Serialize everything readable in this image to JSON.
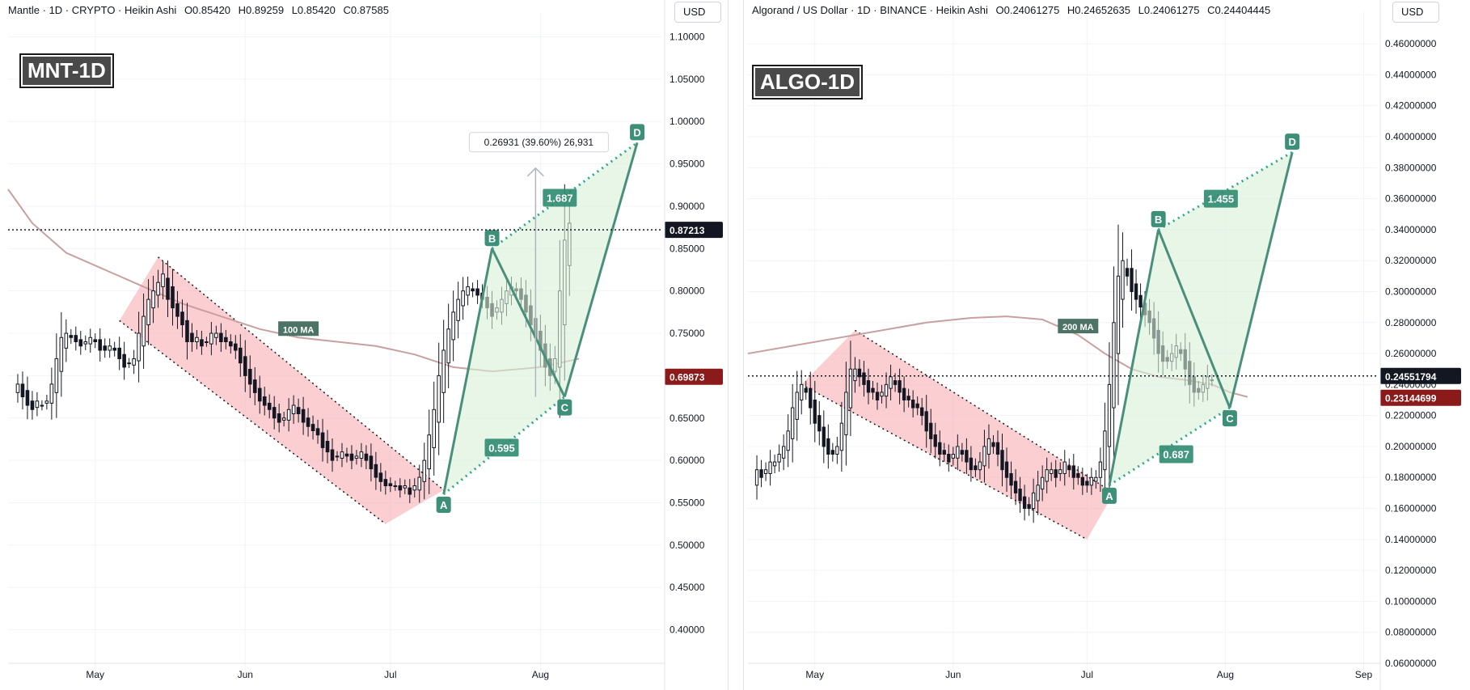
{
  "charts": [
    {
      "legend": [
        "Mantle · 1D · CRYPTO · Heikin Ashi",
        "O0.85420",
        "H0.89259",
        "L0.85420",
        "C0.87585"
      ],
      "currency_button": "USD",
      "ticker_badge": "MNT-1D"
    },
    {
      "legend": [
        "Algorand / US Dollar · 1D · BINANCE · Heikin Ashi",
        "O0.24061275",
        "H0.24652635",
        "L0.24061275",
        "C0.24404445"
      ],
      "currency_button": "USD",
      "ticker_badge": "ALGO-1D"
    }
  ],
  "colors": {
    "up": "#131722",
    "down": "#131722",
    "channel_fill": "#f7a6ad",
    "pattern_fill": "#d8f0d8",
    "pattern_line": "#4a8f7a",
    "pattern_dotted": "#2aa68a",
    "ma_line": "#c9a0a0",
    "last_price_tag": "#131722",
    "ma_tag": "#8b1a1a"
  },
  "chart_data": [
    {
      "type": "candlestick",
      "title": "Mantle · 1D · CRYPTO · Heikin Ashi",
      "ohlc_last": {
        "open": 0.8542,
        "high": 0.89259,
        "low": 0.8542,
        "close": 0.87585
      },
      "ylim": [
        0.37,
        1.11
      ],
      "yticks": [
        "1.10000",
        "1.05000",
        "1.00000",
        "0.95000",
        "0.90000",
        "0.85000",
        "0.80000",
        "0.75000",
        "0.70000",
        "0.65000",
        "0.60000",
        "0.55000",
        "0.50000",
        "0.45000",
        "0.40000"
      ],
      "xticks": [
        {
          "label": "May",
          "day": 18
        },
        {
          "label": "Jun",
          "day": 49
        },
        {
          "label": "Jul",
          "day": 79
        },
        {
          "label": "Aug",
          "day": 110
        }
      ],
      "xlim": [
        0,
        135
      ],
      "close_series": [
        0.69,
        0.675,
        0.665,
        0.66,
        0.67,
        0.665,
        0.67,
        0.69,
        0.72,
        0.745,
        0.75,
        0.745,
        0.74,
        0.735,
        0.74,
        0.745,
        0.74,
        0.73,
        0.73,
        0.735,
        0.73,
        0.72,
        0.71,
        0.715,
        0.72,
        0.75,
        0.77,
        0.79,
        0.8,
        0.81,
        0.82,
        0.79,
        0.78,
        0.77,
        0.76,
        0.74,
        0.74,
        0.745,
        0.735,
        0.74,
        0.75,
        0.75,
        0.74,
        0.74,
        0.735,
        0.73,
        0.715,
        0.7,
        0.69,
        0.68,
        0.67,
        0.665,
        0.66,
        0.65,
        0.645,
        0.65,
        0.66,
        0.665,
        0.655,
        0.645,
        0.64,
        0.635,
        0.63,
        0.615,
        0.61,
        0.6,
        0.605,
        0.61,
        0.605,
        0.6,
        0.605,
        0.61,
        0.6,
        0.59,
        0.58,
        0.575,
        0.57,
        0.57,
        0.57,
        0.565,
        0.57,
        0.56,
        0.57,
        0.58,
        0.6,
        0.63,
        0.66,
        0.7,
        0.73,
        0.755,
        0.775,
        0.79,
        0.8,
        0.805,
        0.8,
        0.795,
        0.79,
        0.78,
        0.77,
        0.78,
        0.79,
        0.8,
        0.805,
        0.8,
        0.79,
        0.775,
        0.76,
        0.745,
        0.73,
        0.71,
        0.7,
        0.72,
        0.8,
        0.86,
        0.88
      ],
      "reference_lines": [
        {
          "label": "0.87213",
          "value": 0.87213,
          "style": "dotted"
        },
        {
          "label": "0.69873",
          "value": 0.69873
        }
      ],
      "moving_average": {
        "name": "100 MA",
        "points": [
          [
            0,
            0.92
          ],
          [
            5,
            0.88
          ],
          [
            12,
            0.845
          ],
          [
            20,
            0.825
          ],
          [
            28,
            0.805
          ],
          [
            36,
            0.785
          ],
          [
            44,
            0.77
          ],
          [
            52,
            0.755
          ],
          [
            60,
            0.745
          ],
          [
            68,
            0.74
          ],
          [
            76,
            0.735
          ],
          [
            84,
            0.725
          ],
          [
            92,
            0.71
          ],
          [
            100,
            0.705
          ],
          [
            110,
            0.71
          ],
          [
            118,
            0.72
          ]
        ]
      },
      "channel": {
        "upper": [
          [
            23,
            0.765
          ],
          [
            88,
            0.57
          ]
        ],
        "lower": [
          [
            23,
            0.765
          ],
          [
            31,
            0.84
          ],
          [
            90,
            0.56
          ],
          [
            78,
            0.525
          ]
        ],
        "upper_dotted": [
          [
            31,
            0.84
          ],
          [
            90,
            0.565
          ]
        ],
        "lower_dotted": [
          [
            23,
            0.765
          ],
          [
            78,
            0.525
          ]
        ]
      },
      "harmonic_pattern": {
        "points": [
          {
            "label": "A",
            "x": 90,
            "y": 0.56
          },
          {
            "label": "B",
            "x": 100,
            "y": 0.85
          },
          {
            "label": "C",
            "x": 115,
            "y": 0.675
          },
          {
            "label": "D",
            "x": 130,
            "y": 0.975
          }
        ],
        "ratios": [
          {
            "label": "0.595",
            "x": 102,
            "y": 0.615
          },
          {
            "label": "1.687",
            "x": 114,
            "y": 0.91
          }
        ],
        "measure": {
          "label": "0.26931 (39.60%) 26,931",
          "from": [
            109,
            0.675
          ],
          "to": [
            109,
            0.945
          ]
        }
      }
    },
    {
      "type": "candlestick",
      "title": "Algorand / US Dollar · 1D · BINANCE · Heikin Ashi",
      "ohlc_last": {
        "open": 0.24061275,
        "high": 0.24652635,
        "low": 0.24061275,
        "close": 0.24404445
      },
      "ylim": [
        0.06,
        0.47
      ],
      "yticks": [
        "0.46000000",
        "0.44000000",
        "0.42000000",
        "0.40000000",
        "0.38000000",
        "0.36000000",
        "0.34000000",
        "0.32000000",
        "0.30000000",
        "0.28000000",
        "0.26000000",
        "0.24000000",
        "0.22000000",
        "0.20000000",
        "0.18000000",
        "0.16000000",
        "0.14000000",
        "0.12000000",
        "0.10000000",
        "0.08000000",
        "0.06000000"
      ],
      "xticks": [
        {
          "label": "May",
          "day": 15
        },
        {
          "label": "Jun",
          "day": 46
        },
        {
          "label": "Jul",
          "day": 76
        },
        {
          "label": "Aug",
          "day": 107
        },
        {
          "label": "Sep",
          "day": 138
        }
      ],
      "xlim": [
        0,
        141
      ],
      "close_series": [
        0.185,
        0.18,
        0.185,
        0.19,
        0.19,
        0.195,
        0.2,
        0.21,
        0.225,
        0.235,
        0.24,
        0.235,
        0.225,
        0.215,
        0.21,
        0.2,
        0.195,
        0.195,
        0.2,
        0.215,
        0.235,
        0.25,
        0.25,
        0.245,
        0.24,
        0.235,
        0.235,
        0.23,
        0.235,
        0.24,
        0.245,
        0.24,
        0.235,
        0.23,
        0.23,
        0.225,
        0.225,
        0.22,
        0.21,
        0.205,
        0.2,
        0.195,
        0.195,
        0.19,
        0.195,
        0.2,
        0.195,
        0.19,
        0.185,
        0.185,
        0.19,
        0.2,
        0.205,
        0.2,
        0.195,
        0.185,
        0.18,
        0.175,
        0.17,
        0.165,
        0.16,
        0.16,
        0.17,
        0.175,
        0.18,
        0.185,
        0.185,
        0.18,
        0.185,
        0.19,
        0.185,
        0.18,
        0.18,
        0.175,
        0.175,
        0.18,
        0.18,
        0.19,
        0.21,
        0.24,
        0.28,
        0.31,
        0.32,
        0.31,
        0.3,
        0.295,
        0.29,
        0.285,
        0.28,
        0.27,
        0.26,
        0.255,
        0.255,
        0.26,
        0.265,
        0.26,
        0.25,
        0.24,
        0.235,
        0.235,
        0.24,
        0.245,
        0.243
      ],
      "reference_lines": [
        {
          "label": "0.24551794",
          "value": 0.24551794,
          "style": "dotted"
        },
        {
          "label": "0.23144699",
          "value": 0.23144699
        }
      ],
      "moving_average": {
        "name": "200 MA",
        "points": [
          [
            0,
            0.26
          ],
          [
            10,
            0.265
          ],
          [
            20,
            0.27
          ],
          [
            30,
            0.275
          ],
          [
            40,
            0.28
          ],
          [
            50,
            0.283
          ],
          [
            58,
            0.284
          ],
          [
            66,
            0.282
          ],
          [
            74,
            0.272
          ],
          [
            80,
            0.26
          ],
          [
            86,
            0.25
          ],
          [
            92,
            0.245
          ],
          [
            98,
            0.243
          ],
          [
            104,
            0.24
          ],
          [
            108,
            0.235
          ],
          [
            112,
            0.232
          ]
        ]
      },
      "channel": {
        "upper_dotted": [
          [
            24,
            0.275
          ],
          [
            82,
            0.17
          ]
        ],
        "lower_dotted": [
          [
            12,
            0.24
          ],
          [
            76,
            0.14
          ]
        ],
        "polygon": [
          [
            12,
            0.24
          ],
          [
            24,
            0.275
          ],
          [
            82,
            0.17
          ],
          [
            76,
            0.14
          ]
        ]
      },
      "harmonic_pattern": {
        "points": [
          {
            "label": "A",
            "x": 81,
            "y": 0.175
          },
          {
            "label": "B",
            "x": 92,
            "y": 0.34
          },
          {
            "label": "C",
            "x": 108,
            "y": 0.225
          },
          {
            "label": "D",
            "x": 122,
            "y": 0.39
          }
        ],
        "ratios": [
          {
            "label": "0.687",
            "x": 96,
            "y": 0.195
          },
          {
            "label": "1.455",
            "x": 106,
            "y": 0.36
          }
        ]
      }
    }
  ]
}
